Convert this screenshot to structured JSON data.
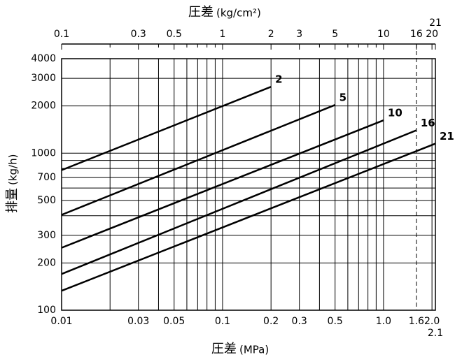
{
  "chart_data": {
    "type": "line",
    "xscale": "log",
    "yscale": "log",
    "x_title": "圧差",
    "x_unit": "(MPa)",
    "x2_title": "圧差",
    "x2_unit": "(kg/cm²)",
    "y_title": "排量",
    "y_unit": "(kg/h)",
    "xlim": [
      0.01,
      2.1
    ],
    "xticks": [
      0.01,
      0.03,
      0.05,
      0.1,
      0.2,
      0.3,
      0.5,
      {
        "value": 1,
        "label": "1.0"
      },
      1.6,
      {
        "value": 2,
        "label": "2.0"
      },
      2.1
    ],
    "x_minor_ticks": [
      0.02,
      0.04,
      0.06,
      0.07,
      0.08,
      0.09,
      0.4,
      0.6,
      0.7,
      0.8,
      0.9
    ],
    "x2lim": [
      0.1,
      21
    ],
    "x2ticks": [
      0.1,
      0.3,
      0.5,
      1,
      2,
      3,
      5,
      10,
      16,
      20,
      21
    ],
    "x2_minor_ticks": [
      0.2,
      0.4,
      0.6,
      0.7,
      0.8,
      0.9,
      4,
      6,
      7,
      8,
      9
    ],
    "ylim": [
      100,
      4000
    ],
    "yticks": [
      100,
      200,
      300,
      500,
      700,
      1000,
      2000,
      3000,
      4000
    ],
    "y_minor_ticks": [
      400,
      600,
      800,
      900
    ],
    "grid": true,
    "reference_line": {
      "x": 1.6,
      "style": "dashed"
    },
    "series": [
      {
        "name": "2",
        "color": "#000000",
        "x": [
          0.01,
          0.2
        ],
        "values": [
          780,
          2650
        ]
      },
      {
        "name": "5",
        "color": "#000000",
        "x": [
          0.01,
          0.5
        ],
        "values": [
          405,
          2030
        ]
      },
      {
        "name": "10",
        "color": "#000000",
        "x": [
          0.01,
          1
        ],
        "values": [
          250,
          1620
        ]
      },
      {
        "name": "16",
        "color": "#000000",
        "x": [
          0.01,
          1.6
        ],
        "values": [
          170,
          1400
        ]
      },
      {
        "name": "21",
        "color": "#000000",
        "x": [
          0.01,
          2.1
        ],
        "values": [
          133,
          1150
        ]
      }
    ]
  }
}
